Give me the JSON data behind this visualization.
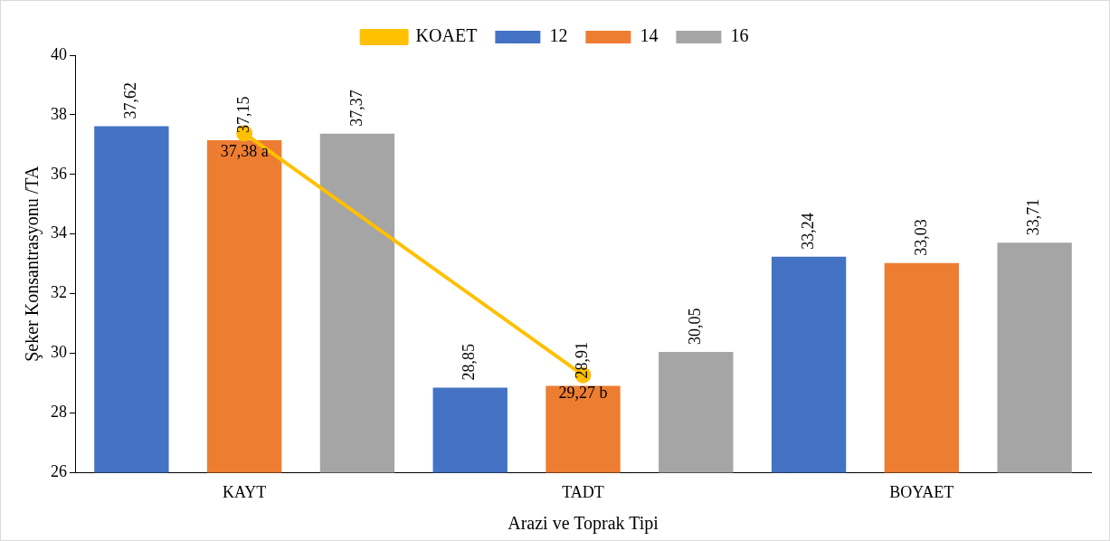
{
  "chart_data": {
    "type": "bar",
    "xlabel": "Arazi ve Toprak Tipi",
    "ylabel": "Şeker Konsantrasyonu /TA",
    "categories": [
      "KAYT",
      "TADT",
      "BOYAET"
    ],
    "series": [
      {
        "name": "12",
        "color": "#4472c4",
        "values": [
          37.62,
          28.85,
          33.24
        ],
        "value_labels": [
          "37,62",
          "28,85",
          "33,24"
        ]
      },
      {
        "name": "14",
        "color": "#ed7d31",
        "values": [
          37.15,
          28.91,
          33.03
        ],
        "value_labels": [
          "37,15",
          "28,91",
          "33,03"
        ]
      },
      {
        "name": "16",
        "color": "#a5a5a5",
        "values": [
          37.37,
          30.05,
          33.71
        ],
        "value_labels": [
          "37,37",
          "30,05",
          "33,71"
        ]
      },
      {
        "name": "KOAET",
        "type": "line",
        "color": "#ffc000",
        "values": [
          37.38,
          29.27,
          null
        ],
        "value_labels": [
          "37,38 a",
          "29,27 b",
          null
        ],
        "marker": "circle"
      }
    ],
    "ylim": [
      26,
      40
    ],
    "yticks": [
      26,
      28,
      30,
      32,
      34,
      36,
      38,
      40
    ],
    "grid": false,
    "legend": "top"
  }
}
